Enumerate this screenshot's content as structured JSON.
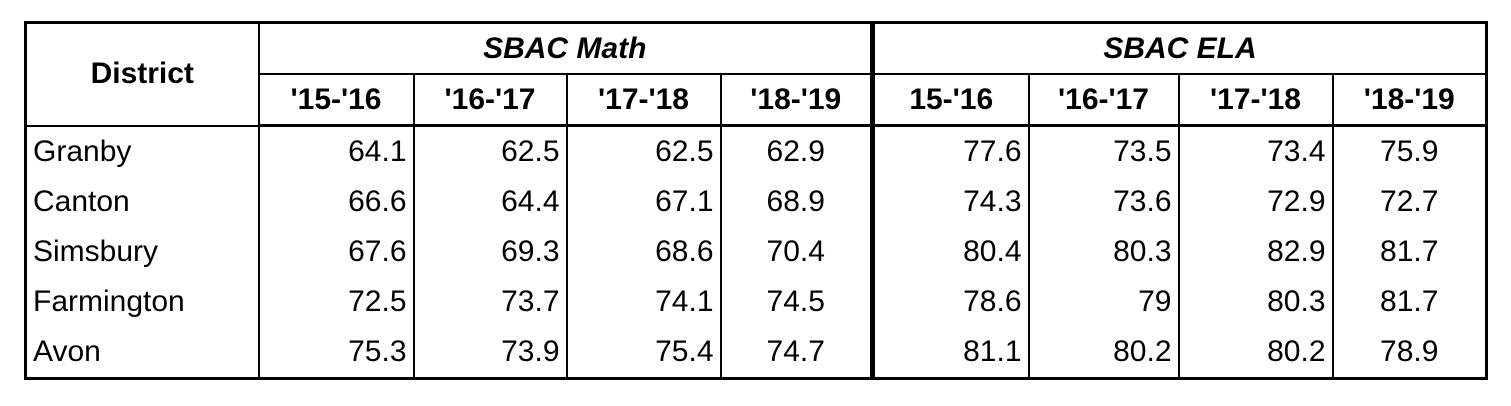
{
  "table": {
    "header": {
      "district": "District",
      "groups": [
        "SBAC Math",
        "SBAC ELA"
      ],
      "years": [
        [
          "'15-'16",
          "'16-'17",
          "'17-'18",
          "'18-'19"
        ],
        [
          "15-'16",
          "'16-'17",
          "'17-'18",
          "'18-'19"
        ]
      ]
    },
    "rows": [
      {
        "district": "Granby",
        "values": [
          64.1,
          62.5,
          62.5,
          62.9,
          77.6,
          73.5,
          73.4,
          75.9
        ]
      },
      {
        "district": "Canton",
        "values": [
          66.6,
          64.4,
          67.1,
          68.9,
          74.3,
          73.6,
          72.9,
          72.7
        ]
      },
      {
        "district": "Simsbury",
        "values": [
          67.6,
          69.3,
          68.6,
          70.4,
          80.4,
          80.3,
          82.9,
          81.7
        ]
      },
      {
        "district": "Farmington",
        "values": [
          72.5,
          73.7,
          74.1,
          74.5,
          78.6,
          79,
          80.3,
          81.7
        ]
      },
      {
        "district": "Avon",
        "values": [
          75.3,
          73.9,
          75.4,
          74.7,
          81.1,
          80.2,
          80.2,
          78.9
        ]
      }
    ]
  }
}
